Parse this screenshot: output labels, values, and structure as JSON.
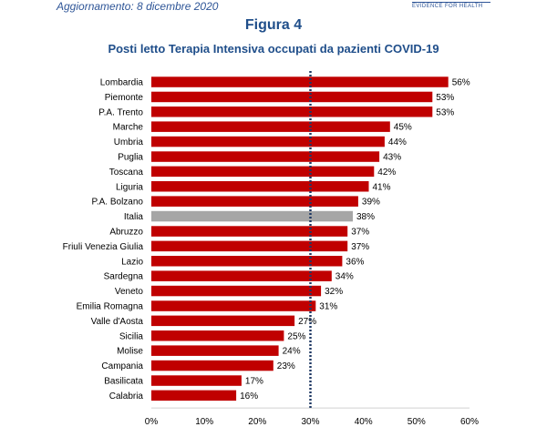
{
  "header": {
    "update_text": "Aggiornamento:  8 dicembre  2020",
    "brand_text": "EVIDENCE FOR HEALTH",
    "figure_label": "Figura 4"
  },
  "colors": {
    "bar": "#c00000",
    "highlight_bar": "#a6a6a6",
    "threshold_line": "#1f3864",
    "title": "#1f4e8a"
  },
  "chart_data": {
    "type": "bar",
    "orientation": "horizontal",
    "title": "Posti letto Terapia Intensiva occupati da pazienti COVID-19",
    "categories": [
      "Lombardia",
      "Piemonte",
      "P.A. Trento",
      "Marche",
      "Umbria",
      "Puglia",
      "Toscana",
      "Liguria",
      "P.A. Bolzano",
      "Italia",
      "Abruzzo",
      "Friuli Venezia Giulia",
      "Lazio",
      "Sardegna",
      "Veneto",
      "Emilia Romagna",
      "Valle d'Aosta",
      "Sicilia",
      "Molise",
      "Campania",
      "Basilicata",
      "Calabria"
    ],
    "values": [
      56,
      53,
      53,
      45,
      44,
      43,
      42,
      41,
      39,
      38,
      37,
      37,
      36,
      34,
      32,
      31,
      27,
      25,
      24,
      23,
      17,
      16
    ],
    "data_labels": [
      "56%",
      "53%",
      "53%",
      "45%",
      "44%",
      "43%",
      "42%",
      "41%",
      "39%",
      "38%",
      "37%",
      "37%",
      "36%",
      "34%",
      "32%",
      "31%",
      "27%",
      "25%",
      "24%",
      "23%",
      "17%",
      "16%"
    ],
    "highlight_category": "Italia",
    "xlim": [
      0,
      60
    ],
    "xticks": [
      0,
      10,
      20,
      30,
      40,
      50,
      60
    ],
    "xtick_labels": [
      "0%",
      "10%",
      "20%",
      "30%",
      "40%",
      "50%",
      "60%"
    ],
    "threshold": 30,
    "threshold_style": "dotted",
    "grid": false,
    "legend": "none"
  }
}
